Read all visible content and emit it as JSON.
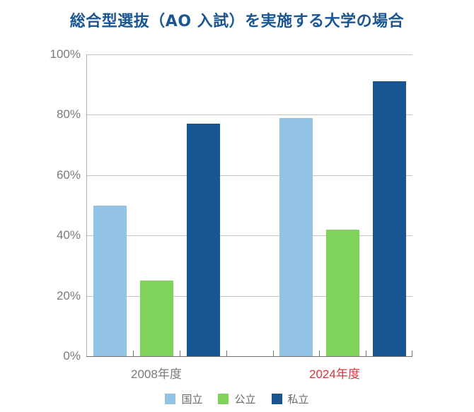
{
  "title": "総合型選抜（AO 入試）を実施する大学の場合",
  "chart_data": {
    "type": "bar",
    "title": "総合型選抜（AO 入試）を実施する大学の場合",
    "xlabel": "",
    "ylabel": "",
    "categories": [
      "2008年度",
      "2024年度"
    ],
    "series": [
      {
        "name": "国立",
        "color": "#92c3e4",
        "values": [
          50,
          79
        ]
      },
      {
        "name": "公立",
        "color": "#7fd25a",
        "values": [
          25,
          42
        ]
      },
      {
        "name": "私立",
        "color": "#175593",
        "values": [
          77,
          91
        ]
      }
    ],
    "ylim": [
      0,
      100
    ],
    "yticks": [
      "0%",
      "20%",
      "40%",
      "60%",
      "80%",
      "100%"
    ],
    "grid": true,
    "legend_position": "bottom",
    "category_label_colors": [
      "#7a7a7a",
      "#d9363e"
    ]
  }
}
